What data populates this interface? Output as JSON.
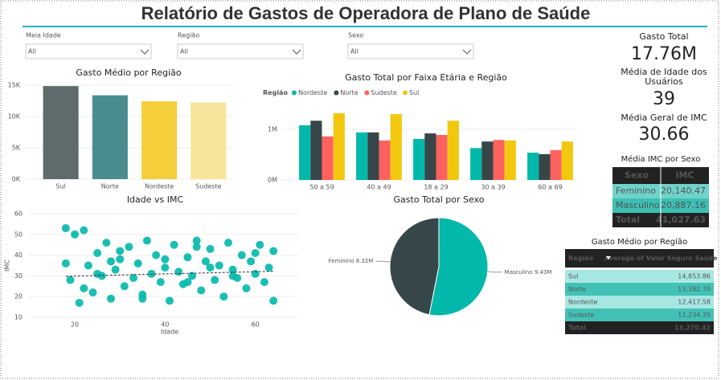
{
  "title": "Relatório de Gastos de Operadora de Plano de Saúde",
  "filters": [
    {
      "label": "Meia Idade",
      "value": "All"
    },
    {
      "label": "Região",
      "value": "All"
    },
    {
      "label": "Sexo",
      "value": "All"
    }
  ],
  "cards": [
    {
      "label": "Gasto Total",
      "value": "17.76M"
    },
    {
      "label": "Média de Idade dos Usuários",
      "value": "39"
    },
    {
      "label": "Média Geral de IMC",
      "value": "30.66"
    }
  ],
  "imc_table": {
    "title": "Média IMC por Sexo",
    "columns": [
      "Sexo",
      "IMC"
    ],
    "rows": [
      [
        "Feminino",
        "20,140.47"
      ],
      [
        "Masculino",
        "20,887.16"
      ]
    ],
    "total": [
      "Total",
      "41,027.63"
    ]
  },
  "region_table": {
    "title": "Gasto Médio por Região",
    "columns": [
      "Região",
      "Average of Valor Seguro Saúde"
    ],
    "rows": [
      [
        "Sul",
        "14,853.86"
      ],
      [
        "Norte",
        "13,382.70"
      ],
      [
        "Nordeste",
        "12,417.58"
      ],
      [
        "Sudeste",
        "12,234.35"
      ]
    ],
    "total": [
      "Total",
      "13,270.42"
    ]
  },
  "chart_data": [
    {
      "type": "bar",
      "title": "Gasto Médio por Região",
      "categories": [
        "Sul",
        "Norte",
        "Nordeste",
        "Sudeste"
      ],
      "values": [
        14853.86,
        13382.7,
        12417.58,
        12234.35
      ],
      "colors": [
        "#5f6b6d",
        "#4a8d8e",
        "#f4cf3b",
        "#f8e59c"
      ],
      "ylim": [
        0,
        15000
      ],
      "yticks": [
        {
          "value": 0,
          "label": "0K"
        },
        {
          "value": 5000,
          "label": "5K"
        },
        {
          "value": 10000,
          "label": "10K"
        },
        {
          "value": 15000,
          "label": "15K"
        }
      ],
      "grid": true
    },
    {
      "type": "bar",
      "title": "Gasto Total por Faixa Etária e Região",
      "legend_title": "Região",
      "legend": "top-left",
      "categories": [
        "50 a 59",
        "40 a 49",
        "18 a 29",
        "30 a 39",
        "60 a 69"
      ],
      "series": [
        {
          "name": "Nordeste",
          "color": "#01b8aa",
          "values": [
            1080000,
            940000,
            810000,
            630000,
            540000
          ]
        },
        {
          "name": "Norte",
          "color": "#374649",
          "values": [
            1170000,
            940000,
            920000,
            760000,
            510000
          ]
        },
        {
          "name": "Sudeste",
          "color": "#fd625e",
          "values": [
            860000,
            780000,
            890000,
            790000,
            590000
          ]
        },
        {
          "name": "Sul",
          "color": "#f2c80f",
          "values": [
            1320000,
            1300000,
            1170000,
            780000,
            760000
          ]
        }
      ],
      "ylim": [
        0,
        1500000
      ],
      "yticks": [
        {
          "value": 0,
          "label": "0M"
        },
        {
          "value": 1000000,
          "label": "1M"
        }
      ],
      "grid": true
    },
    {
      "type": "scatter",
      "title": "Idade vs IMC",
      "xlabel": "Idade",
      "ylabel": "IMC",
      "color": "#01b8aa",
      "x": [
        18,
        19,
        20,
        21,
        22,
        23,
        24,
        25,
        26,
        27,
        28,
        29,
        30,
        31,
        32,
        33,
        34,
        35,
        36,
        37,
        38,
        39,
        40,
        41,
        42,
        43,
        44,
        45,
        46,
        47,
        48,
        49,
        50,
        51,
        52,
        53,
        54,
        55,
        56,
        57,
        58,
        59,
        60,
        61,
        62,
        63,
        64,
        18,
        22,
        25,
        30,
        35,
        40,
        45,
        50,
        55,
        60,
        64,
        28,
        47
      ],
      "y": [
        53,
        28,
        50,
        17,
        52,
        35,
        22,
        41,
        30,
        46,
        19,
        33,
        38,
        25,
        44,
        29,
        36,
        21,
        47,
        31,
        40,
        27,
        34,
        18,
        45,
        32,
        26,
        39,
        30,
        47,
        23,
        37,
        43,
        28,
        35,
        20,
        46,
        33,
        29,
        40,
        24,
        37,
        31,
        45,
        27,
        34,
        42,
        36,
        24,
        31,
        42,
        19,
        38,
        27,
        34,
        30,
        41,
        18,
        37,
        44
      ],
      "trendline": {
        "x": [
          18,
          64
        ],
        "y": [
          29.8,
          32.2
        ]
      },
      "xlim": [
        15,
        67
      ],
      "xticks": [
        20,
        40,
        60
      ],
      "ylim": [
        10,
        60
      ],
      "yticks": [
        10,
        20,
        30,
        40,
        50,
        60
      ],
      "grid": true
    },
    {
      "type": "pie",
      "title": "Gasto Total por Sexo",
      "categories": [
        "Feminino",
        "Masculino"
      ],
      "values": [
        8320000,
        9430000
      ],
      "value_labels": [
        "8.32M",
        "9.43M"
      ],
      "colors": [
        "#374649",
        "#01b8aa"
      ]
    }
  ]
}
